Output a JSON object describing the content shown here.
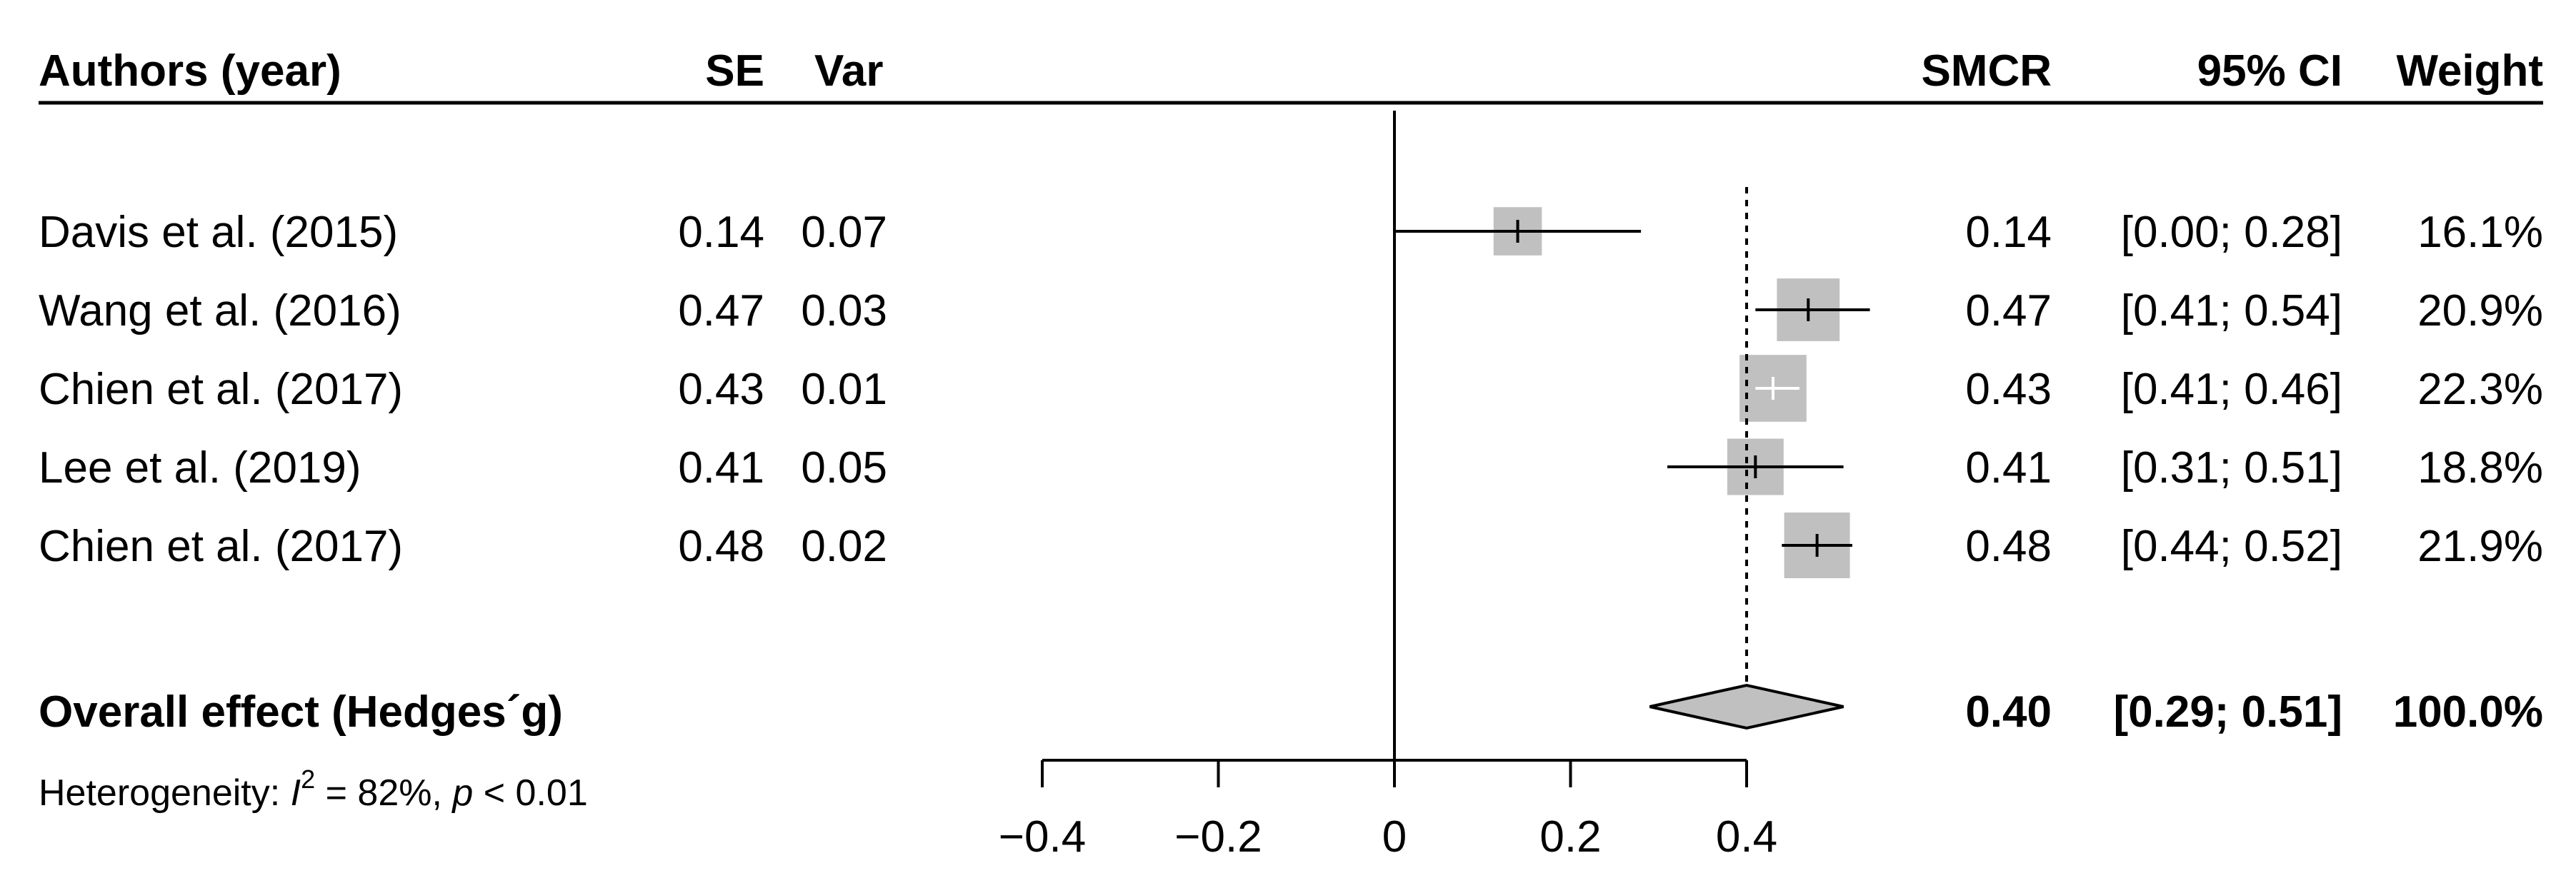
{
  "chart_data": {
    "type": "forest",
    "columns": {
      "authors": "Authors (year)",
      "se": "SE",
      "var": "Var",
      "effect": "SMCR",
      "ci": "95% CI",
      "weight": "Weight"
    },
    "studies": [
      {
        "label": "Davis et al. (2015)",
        "se": "0.14",
        "var": "0.07",
        "estimate": 0.14,
        "lower": 0.0,
        "upper": 0.28,
        "est_text": "0.14",
        "ci_text": "[0.00; 0.28]",
        "weight": 16.1,
        "weight_text": "16.1%"
      },
      {
        "label": "Wang et al. (2016)",
        "se": "0.47",
        "var": "0.03",
        "estimate": 0.47,
        "lower": 0.41,
        "upper": 0.54,
        "est_text": "0.47",
        "ci_text": "[0.41; 0.54]",
        "weight": 20.9,
        "weight_text": "20.9%"
      },
      {
        "label": "Chien et al. (2017)",
        "se": "0.43",
        "var": "0.01",
        "estimate": 0.43,
        "lower": 0.41,
        "upper": 0.46,
        "est_text": "0.43",
        "ci_text": "[0.41; 0.46]",
        "weight": 22.3,
        "weight_text": "22.3%"
      },
      {
        "label": "Lee et al. (2019)",
        "se": "0.41",
        "var": "0.05",
        "estimate": 0.41,
        "lower": 0.31,
        "upper": 0.51,
        "est_text": "0.41",
        "ci_text": "[0.31; 0.51]",
        "weight": 18.8,
        "weight_text": "18.8%"
      },
      {
        "label": "Chien et al. (2017)",
        "se": "0.48",
        "var": "0.02",
        "estimate": 0.48,
        "lower": 0.44,
        "upper": 0.52,
        "est_text": "0.48",
        "ci_text": "[0.44; 0.52]",
        "weight": 21.9,
        "weight_text": "21.9%"
      }
    ],
    "overall": {
      "label": "Overall effect (Hedges´g)",
      "estimate": 0.4,
      "lower": 0.29,
      "upper": 0.51,
      "est_text": "0.40",
      "ci_text": "[0.29; 0.51]",
      "weight_text": "100.0%"
    },
    "heterogeneity": {
      "prefix": "Heterogeneity: ",
      "i_symbol": "I",
      "i_sup": "2",
      "i_value": " = 82%, ",
      "p_symbol": "p",
      "p_value": " < 0.01"
    },
    "x_axis": {
      "ticks": [
        -0.4,
        -0.2,
        0,
        0.2,
        0.4
      ],
      "tick_labels": [
        "−0.4",
        "−0.2",
        "0",
        "0.2",
        "0.4"
      ],
      "xlim": [
        -0.4,
        0.4
      ],
      "null_line": 0,
      "reference_line": 0.4
    },
    "colors": {
      "box": "#c0c0c0",
      "line": "#000000",
      "diamond_fill": "#c0c0c0"
    }
  }
}
